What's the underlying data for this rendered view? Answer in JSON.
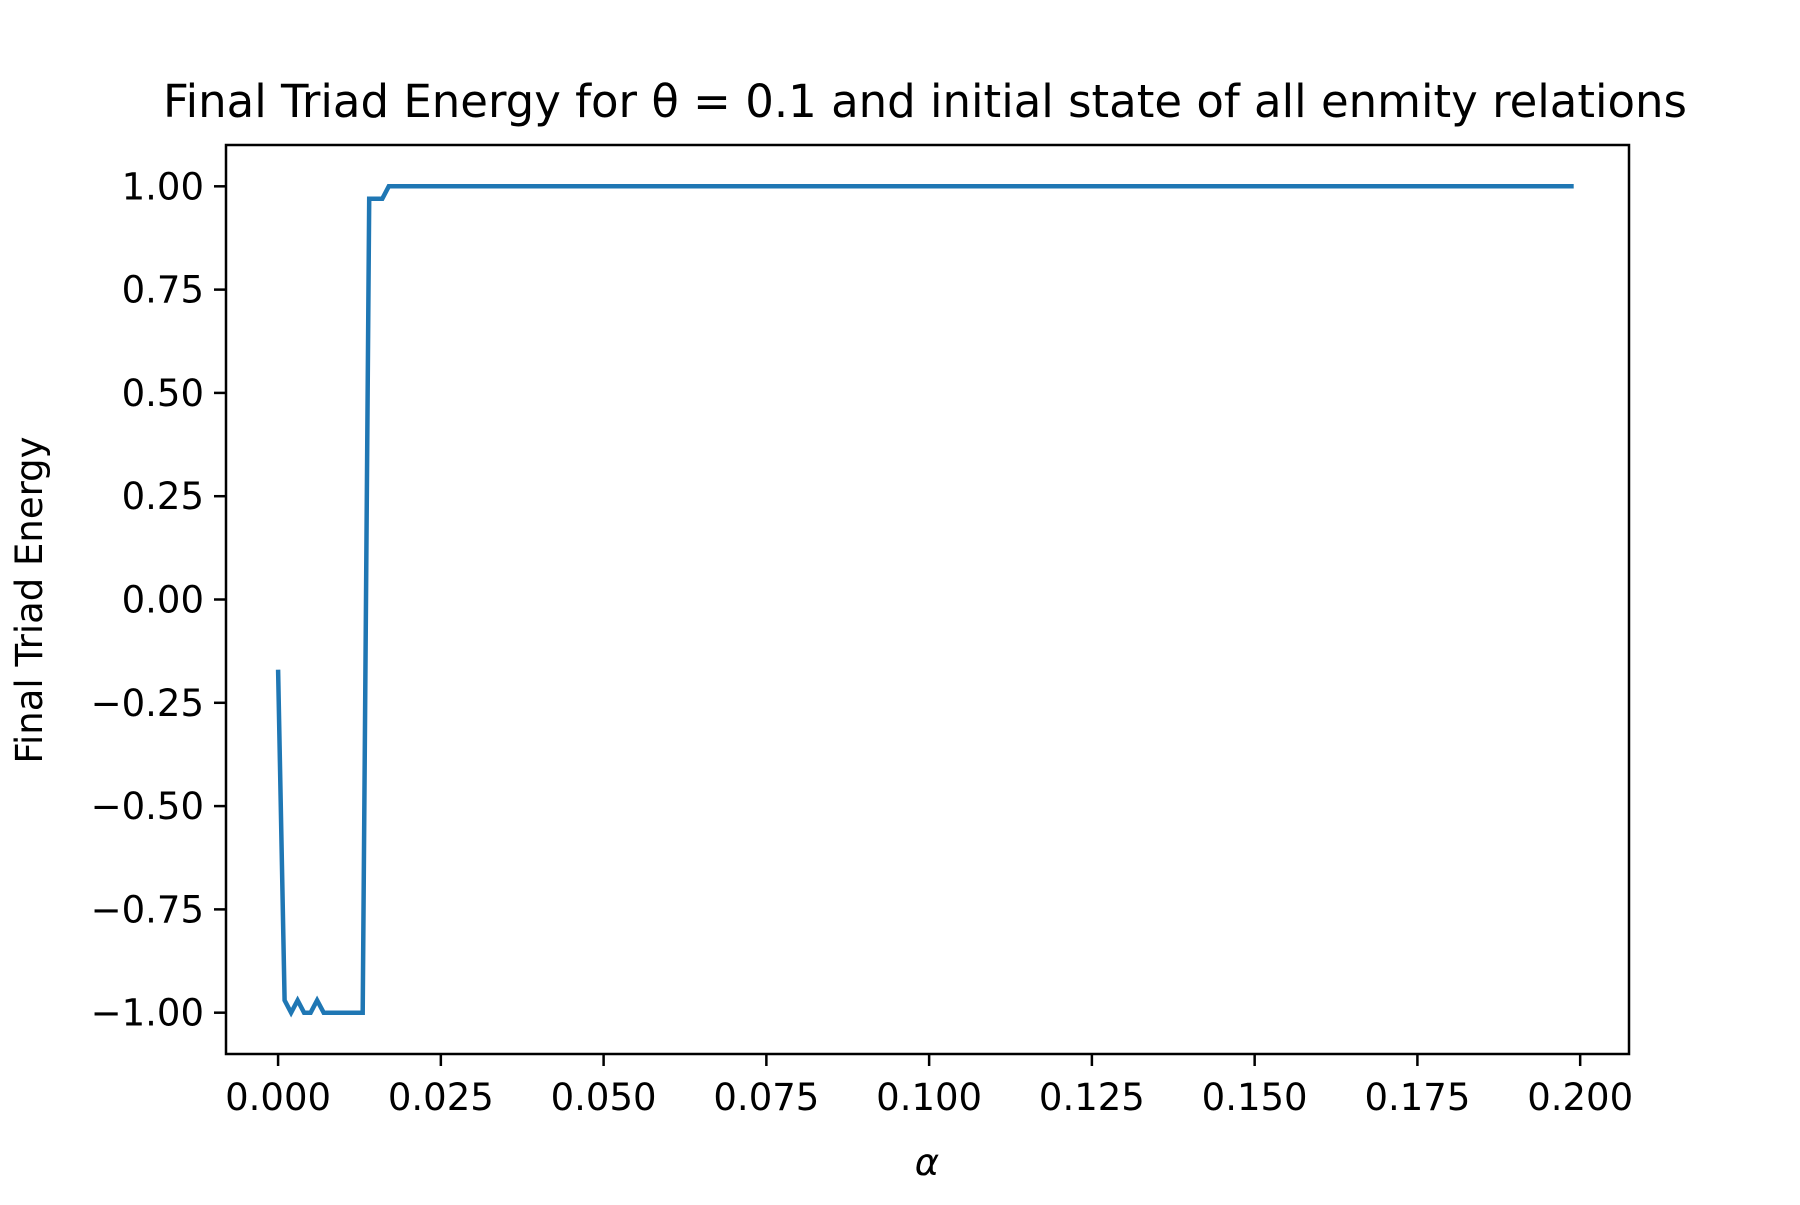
{
  "chart_data": {
    "type": "line",
    "title": "Final Triad Energy for θ = 0.1 and initial state of all enmity relations",
    "xlabel": "α",
    "ylabel": "Final Triad Energy",
    "xlim": [
      -0.008,
      0.2075
    ],
    "ylim": [
      -1.1,
      1.1
    ],
    "xticks": [
      0.0,
      0.025,
      0.05,
      0.075,
      0.1,
      0.125,
      0.15,
      0.175,
      0.2
    ],
    "xtick_labels": [
      "0.000",
      "0.025",
      "0.050",
      "0.075",
      "0.100",
      "0.125",
      "0.150",
      "0.175",
      "0.200"
    ],
    "yticks": [
      -1.0,
      -0.75,
      -0.5,
      -0.25,
      0.0,
      0.25,
      0.5,
      0.75,
      1.0
    ],
    "ytick_labels": [
      "−1.00",
      "−0.75",
      "−0.50",
      "−0.25",
      "0.00",
      "0.25",
      "0.50",
      "0.75",
      "1.00"
    ],
    "grid": false,
    "series": [
      {
        "color": "#1f77b4",
        "x": [
          0.0,
          0.001,
          0.002,
          0.003,
          0.004,
          0.005,
          0.006,
          0.007,
          0.008,
          0.009,
          0.01,
          0.011,
          0.012,
          0.013,
          0.014,
          0.015,
          0.016,
          0.017,
          0.018,
          0.199
        ],
        "y": [
          -0.17,
          -0.97,
          -1.0,
          -0.97,
          -1.0,
          -1.0,
          -0.97,
          -1.0,
          -1.0,
          -1.0,
          -1.0,
          -1.0,
          -1.0,
          -1.0,
          0.97,
          0.97,
          0.97,
          1.0,
          1.0,
          1.0
        ]
      }
    ]
  }
}
